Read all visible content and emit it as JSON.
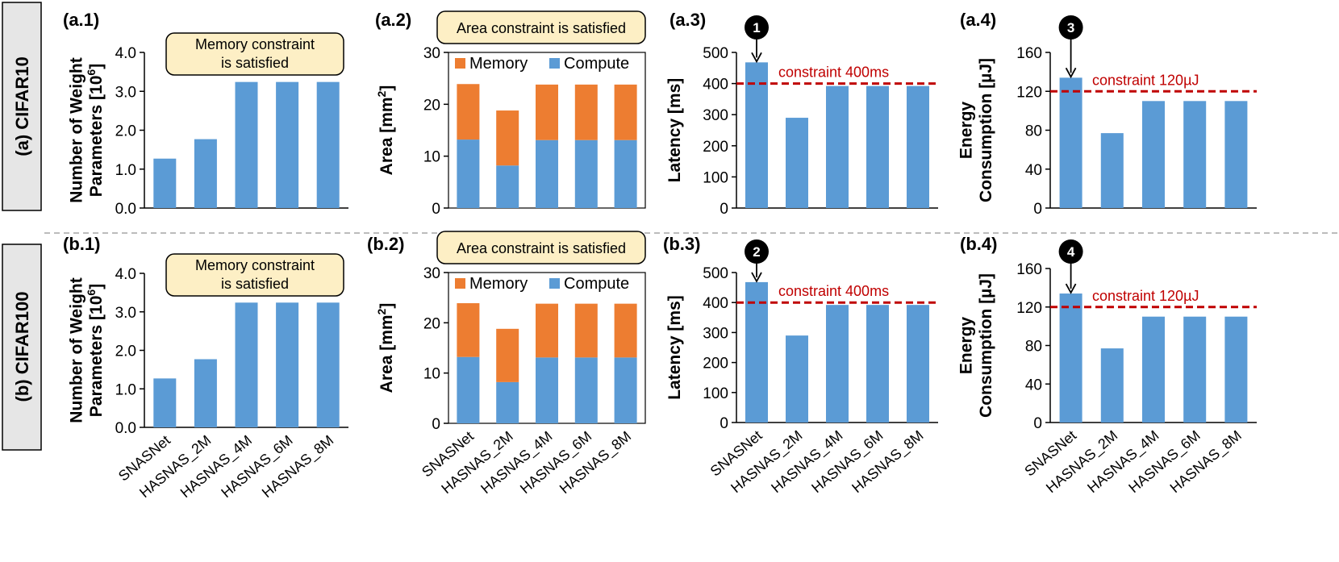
{
  "colors": {
    "compute": "#5b9bd5",
    "memory": "#ed7d31",
    "constraint": "#c00000",
    "callout_fill": "#fdefc5",
    "rowlabel_fill": "#e6e6e6",
    "marker_fill": "#000000"
  },
  "rows": [
    {
      "label": "(a) CIFAR10"
    },
    {
      "label": "(b) CIFAR100"
    }
  ],
  "chart_data": [
    {
      "id": "a1",
      "panel": "(a.1)",
      "type": "bar",
      "ylabel_lines": [
        "Number of Weight",
        "Parameters [10",
        "6",
        "]"
      ],
      "categories": [
        "SNASNet",
        "HASNAS_2M",
        "HASNAS_4M",
        "HASNAS_6M",
        "HASNAS_8M"
      ],
      "values": [
        1.27,
        1.77,
        3.24,
        3.24,
        3.24
      ],
      "ylim": [
        0,
        4
      ],
      "yticks": [
        "0.0",
        "1.0",
        "2.0",
        "3.0",
        "4.0"
      ],
      "callout": [
        "Memory constraint",
        "is satisfied"
      ]
    },
    {
      "id": "a2",
      "panel": "(a.2)",
      "type": "stacked_bar",
      "ylabel_lines": [
        "Area [mm",
        "2",
        "]"
      ],
      "categories": [
        "SNASNet",
        "HASNAS_2M",
        "HASNAS_4M",
        "HASNAS_6M",
        "HASNAS_8M"
      ],
      "series": [
        {
          "name": "Compute",
          "values": [
            13.2,
            8.2,
            13.1,
            13.1,
            13.1
          ]
        },
        {
          "name": "Memory",
          "values": [
            10.7,
            10.6,
            10.7,
            10.7,
            10.7
          ]
        }
      ],
      "ylim": [
        0,
        30
      ],
      "yticks": [
        "0",
        "10",
        "20",
        "30"
      ],
      "callout": [
        "Area constraint is satisfied"
      ],
      "legend": [
        "Memory",
        "Compute"
      ]
    },
    {
      "id": "a3",
      "panel": "(a.3)",
      "type": "bar",
      "ylabel_lines": [
        "Latency [ms]"
      ],
      "categories": [
        "SNASNet",
        "HASNAS_2M",
        "HASNAS_4M",
        "HASNAS_6M",
        "HASNAS_8M"
      ],
      "values": [
        468,
        290,
        392,
        392,
        392
      ],
      "ylim": [
        0,
        500
      ],
      "yticks": [
        "0",
        "100",
        "200",
        "300",
        "400",
        "500"
      ],
      "constraint": {
        "value": 400,
        "label": "constraint 400ms"
      },
      "marker": "1"
    },
    {
      "id": "a4",
      "panel": "(a.4)",
      "type": "bar",
      "ylabel_lines": [
        "Energy",
        "Consumption [µJ]"
      ],
      "categories": [
        "SNASNet",
        "HASNAS_2M",
        "HASNAS_4M",
        "HASNAS_6M",
        "HASNAS_8M"
      ],
      "values": [
        134,
        77,
        110,
        110,
        110
      ],
      "ylim": [
        0,
        160
      ],
      "yticks": [
        "0",
        "40",
        "80",
        "120",
        "160"
      ],
      "constraint": {
        "value": 120,
        "label": "constraint 120µJ"
      },
      "marker": "3"
    },
    {
      "id": "b1",
      "panel": "(b.1)",
      "type": "bar",
      "ylabel_lines": [
        "Number of Weight",
        "Parameters [10",
        "6",
        "]"
      ],
      "categories": [
        "SNASNet",
        "HASNAS_2M",
        "HASNAS_4M",
        "HASNAS_6M",
        "HASNAS_8M"
      ],
      "values": [
        1.27,
        1.77,
        3.24,
        3.24,
        3.24
      ],
      "ylim": [
        0,
        4
      ],
      "yticks": [
        "0.0",
        "1.0",
        "2.0",
        "3.0",
        "4.0"
      ],
      "callout": [
        "Memory constraint",
        "is satisfied"
      ]
    },
    {
      "id": "b2",
      "panel": "(b.2)",
      "type": "stacked_bar",
      "ylabel_lines": [
        "Area [mm",
        "2",
        "]"
      ],
      "categories": [
        "SNASNet",
        "HASNAS_2M",
        "HASNAS_4M",
        "HASNAS_6M",
        "HASNAS_8M"
      ],
      "series": [
        {
          "name": "Compute",
          "values": [
            13.2,
            8.2,
            13.1,
            13.1,
            13.1
          ]
        },
        {
          "name": "Memory",
          "values": [
            10.7,
            10.6,
            10.7,
            10.7,
            10.7
          ]
        }
      ],
      "ylim": [
        0,
        30
      ],
      "yticks": [
        "0",
        "10",
        "20",
        "30"
      ],
      "callout": [
        "Area constraint is satisfied"
      ],
      "legend": [
        "Memory",
        "Compute"
      ]
    },
    {
      "id": "b3",
      "panel": "(b.3)",
      "type": "bar",
      "ylabel_lines": [
        "Latency [ms]"
      ],
      "categories": [
        "SNASNet",
        "HASNAS_2M",
        "HASNAS_4M",
        "HASNAS_6M",
        "HASNAS_8M"
      ],
      "values": [
        468,
        290,
        392,
        392,
        392
      ],
      "ylim": [
        0,
        500
      ],
      "yticks": [
        "0",
        "100",
        "200",
        "300",
        "400",
        "500"
      ],
      "constraint": {
        "value": 400,
        "label": "constraint 400ms"
      },
      "marker": "2"
    },
    {
      "id": "b4",
      "panel": "(b.4)",
      "type": "bar",
      "ylabel_lines": [
        "Energy",
        "Consumption [µJ]"
      ],
      "categories": [
        "SNASNet",
        "HASNAS_2M",
        "HASNAS_4M",
        "HASNAS_6M",
        "HASNAS_8M"
      ],
      "values": [
        134,
        77,
        110,
        110,
        110
      ],
      "ylim": [
        0,
        160
      ],
      "yticks": [
        "0",
        "40",
        "80",
        "120",
        "160"
      ],
      "constraint": {
        "value": 120,
        "label": "constraint 120µJ"
      },
      "marker": "4"
    }
  ]
}
